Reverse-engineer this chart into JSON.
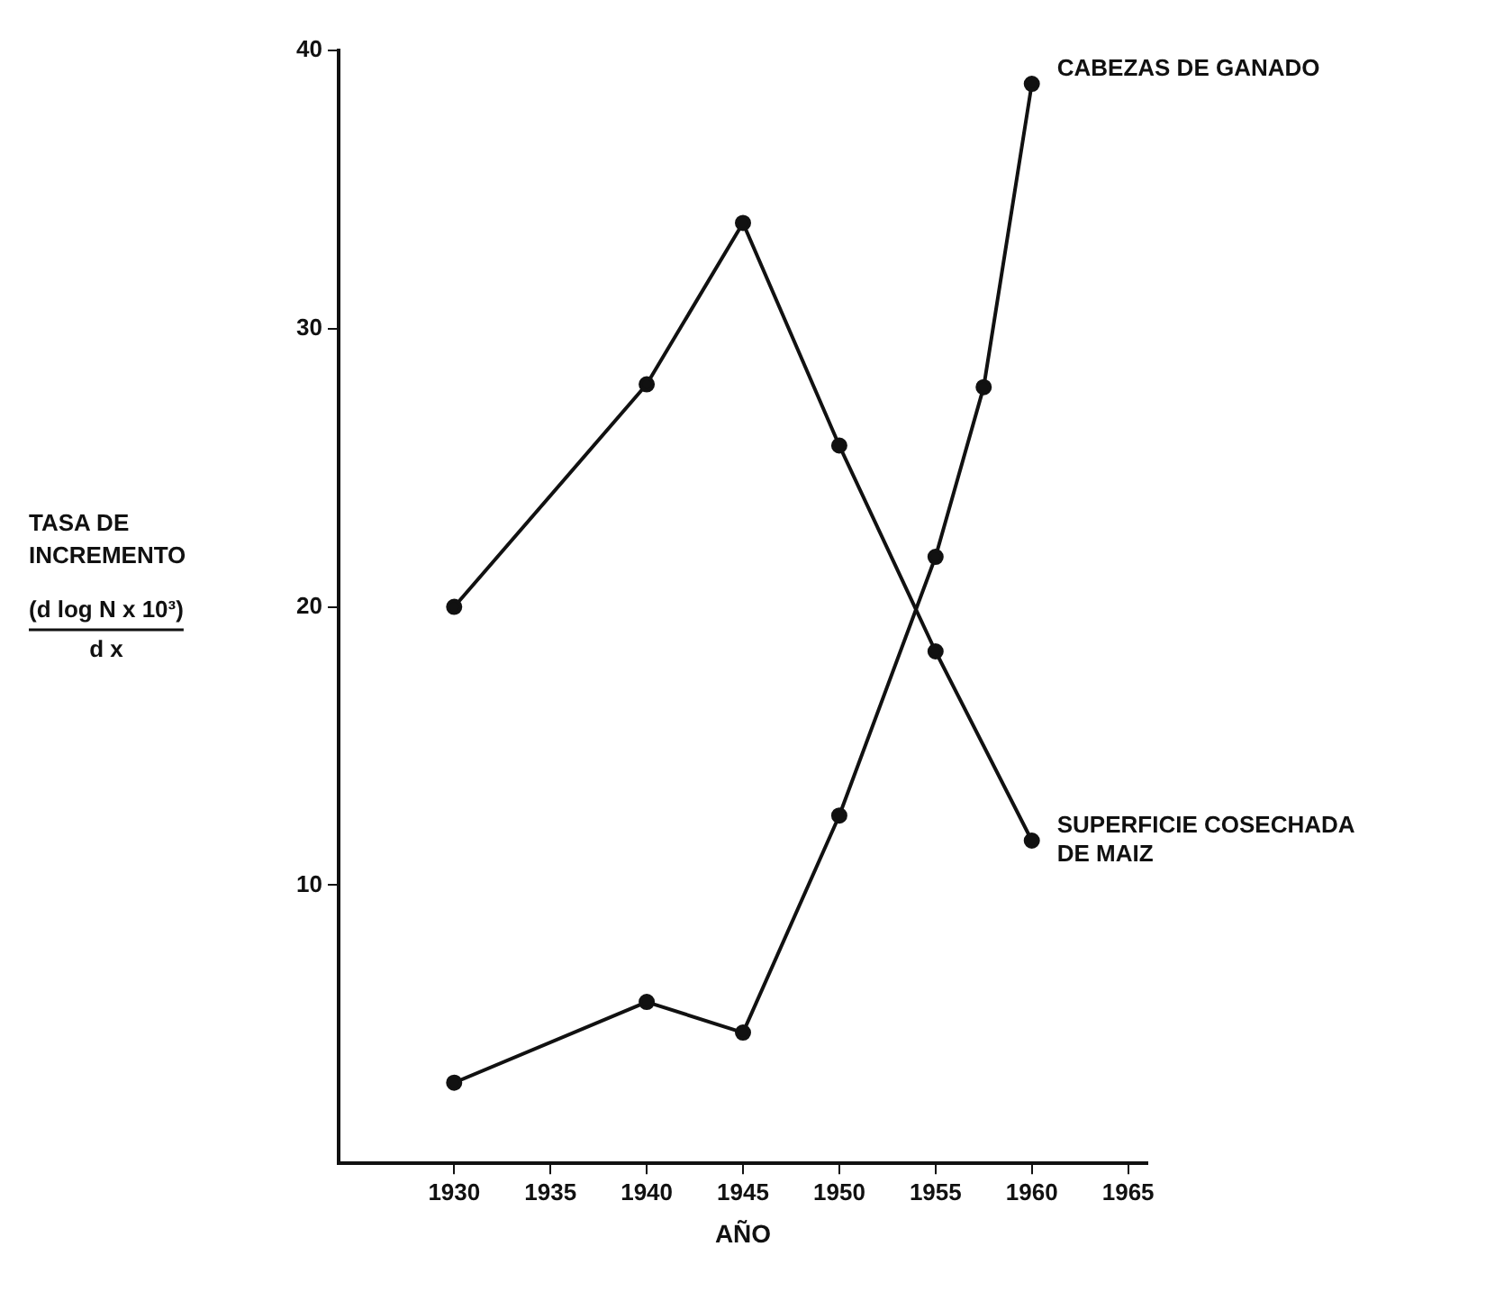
{
  "chart_data": {
    "type": "line",
    "xlabel": "AÑO",
    "ylabel": "TASA DE\nINCREMENTO\n(d log N x 10³)\nd x",
    "xlim": [
      1924,
      1966
    ],
    "xticks": [
      1930,
      1935,
      1940,
      1945,
      1950,
      1955,
      1960,
      1965
    ],
    "ylim": [
      0,
      40
    ],
    "yticks": [
      10,
      20,
      30,
      40
    ],
    "grid": false,
    "legend": false,
    "marker": "circle",
    "line_style": "solid",
    "series": [
      {
        "name": "SUPERFICIE COSECHADA DE MAIZ",
        "color": "#111111",
        "x": [
          1930,
          1940,
          1945,
          1950,
          1955,
          1960
        ],
        "values": [
          20,
          28,
          33.8,
          25.8,
          18.4,
          11.6
        ]
      },
      {
        "name": "CABEZAS DE GANADO",
        "color": "#111111",
        "x": [
          1930,
          1940,
          1945,
          1950,
          1955,
          1957.5,
          1960
        ],
        "values": [
          2.9,
          5.8,
          4.7,
          12.5,
          21.8,
          27.9,
          38.8
        ]
      }
    ]
  }
}
